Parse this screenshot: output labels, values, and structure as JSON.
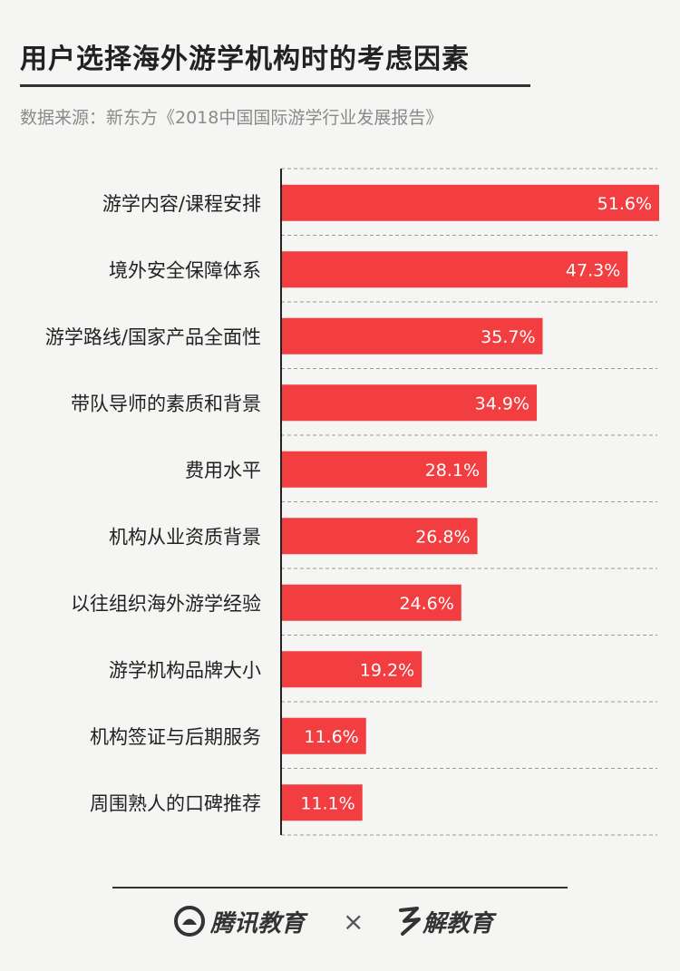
{
  "header": {
    "title": "用户选择海外游学机构时的考虑因素",
    "source": "数据来源：新东方《2018中国国际游学行业发展报告》"
  },
  "footer": {
    "brand_left": "腾讯教育",
    "separator": "×",
    "brand_right": "解教育"
  },
  "colors": {
    "bar": "#f23e41",
    "label_text": "#ffffff",
    "gridline": "#999999",
    "axis": "#222222"
  },
  "chart_data": {
    "type": "bar",
    "orientation": "horizontal",
    "categories": [
      "游学内容/课程安排",
      "境外安全保障体系",
      "游学路线/国家产品全面性",
      "带队导师的素质和背景",
      "费用水平",
      "机构从业资质背景",
      "以往组织海外游学经验",
      "游学机构品牌大小",
      "机构签证与后期服务",
      "周围熟人的口碑推荐"
    ],
    "values": [
      51.6,
      47.3,
      35.7,
      34.9,
      28.1,
      26.8,
      24.6,
      19.2,
      11.6,
      11.1
    ],
    "value_labels": [
      "51.6%",
      "47.3%",
      "35.7%",
      "34.9%",
      "28.1%",
      "26.8%",
      "24.6%",
      "19.2%",
      "11.6%",
      "11.1%"
    ],
    "xlim": [
      0,
      51.6
    ],
    "grid": true,
    "legend": false
  }
}
